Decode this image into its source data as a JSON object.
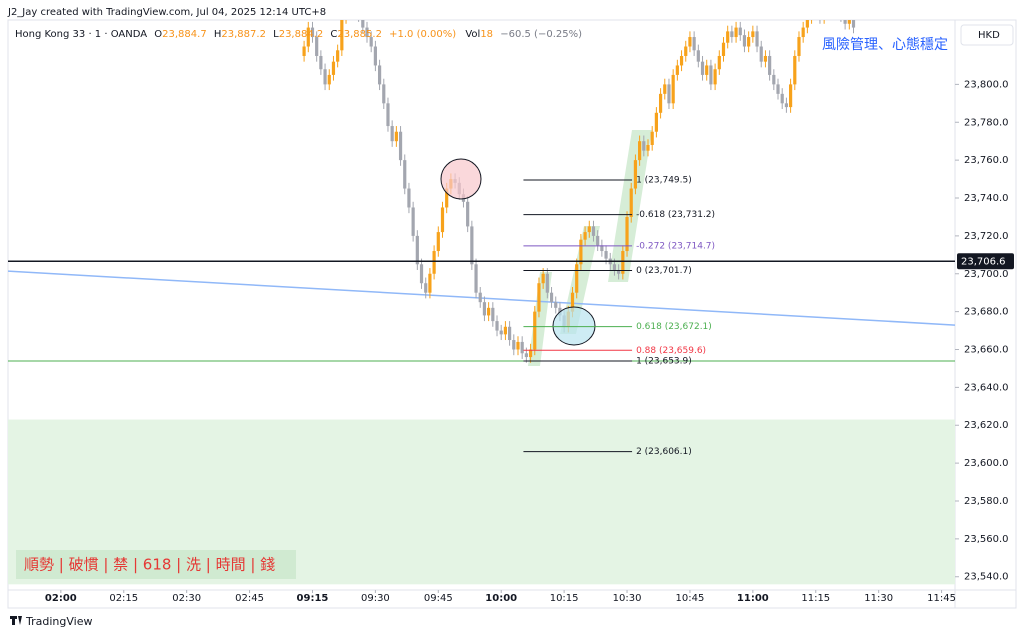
{
  "header": {
    "credit": "J2_Jay created with TradingView.com, Jul 04, 2025 12:14 UTC+8",
    "symbol": "Hong Kong 33 · 1 · OANDA",
    "ohlc": [
      {
        "label": "O",
        "value": "23,884.7"
      },
      {
        "label": "H",
        "value": "23,887.2"
      },
      {
        "label": "L",
        "value": "23,884.2"
      },
      {
        "label": "C",
        "value": "23,885.2"
      }
    ],
    "change": "+1.0 (0.00%)",
    "vol_label": "Vol",
    "vol": "18",
    "vol_change": "−60.5 (−0.25%)"
  },
  "currency": "HKD",
  "footer": "TradingView",
  "annotation": "風險管理、心態穩定",
  "note_box": "順勢 | 破慣 | 禁 | 618 | 洗 | 時間 | 錢",
  "chart_data": {
    "type": "candlestick",
    "up_color": "#f7a21b",
    "down_color": "#a3a6af",
    "grid": false,
    "xlim": [
      -12.6,
      213.2
    ],
    "ylim": [
      23533,
      23834
    ],
    "xticks": [
      {
        "value": 0,
        "label": "02:00",
        "bold": true
      },
      {
        "value": 15,
        "label": "02:15"
      },
      {
        "value": 30,
        "label": "02:30"
      },
      {
        "value": 45,
        "label": "02:45"
      },
      {
        "value": 60,
        "label": "09:15",
        "bold": true
      },
      {
        "value": 75,
        "label": "09:30"
      },
      {
        "value": 90,
        "label": "09:45"
      },
      {
        "value": 105,
        "label": "10:00",
        "bold": true
      },
      {
        "value": 120,
        "label": "10:15"
      },
      {
        "value": 135,
        "label": "10:30"
      },
      {
        "value": 150,
        "label": "10:45"
      },
      {
        "value": 165,
        "label": "11:00",
        "bold": true
      },
      {
        "value": 180,
        "label": "11:15"
      },
      {
        "value": 195,
        "label": "11:30"
      },
      {
        "value": 210,
        "label": "11:45"
      }
    ],
    "yticks": [
      {
        "value": 23540,
        "label": "23,540.0"
      },
      {
        "value": 23560,
        "label": "23,560.0"
      },
      {
        "value": 23580,
        "label": "23,580.0"
      },
      {
        "value": 23600,
        "label": "23,600.0"
      },
      {
        "value": 23620,
        "label": "23,620.0"
      },
      {
        "value": 23640,
        "label": "23,640.0"
      },
      {
        "value": 23660,
        "label": "23,660.0"
      },
      {
        "value": 23680,
        "label": "23,680.0"
      },
      {
        "value": 23700,
        "label": "23,700.0"
      },
      {
        "value": 23720,
        "label": "23,720.0"
      },
      {
        "value": 23740,
        "label": "23,740.0"
      },
      {
        "value": 23760,
        "label": "23,760.0"
      },
      {
        "value": 23780,
        "label": "23,780.0"
      },
      {
        "value": 23800,
        "label": "23,800.0"
      }
    ],
    "x": [
      58,
      59,
      60,
      61,
      62,
      63,
      64,
      65,
      66,
      67,
      68,
      69,
      70,
      71,
      72,
      73,
      74,
      75,
      76,
      77,
      78,
      79,
      80,
      81,
      82,
      83,
      84,
      85,
      86,
      87,
      88,
      89,
      90,
      91,
      92,
      93,
      94,
      95,
      96,
      97,
      98,
      99,
      100,
      101,
      102,
      103,
      104,
      105,
      106,
      107,
      108,
      109,
      110,
      111,
      112,
      113,
      114,
      115,
      116,
      117,
      118,
      119,
      120,
      121,
      122,
      123,
      124,
      125,
      126,
      127,
      128,
      129,
      130,
      131,
      132,
      133,
      134,
      135,
      136,
      137,
      138,
      139,
      140,
      141,
      142,
      143,
      144,
      145,
      146,
      147,
      148,
      149,
      150,
      151,
      152,
      153,
      154,
      155,
      156,
      157,
      158,
      159,
      160,
      161,
      162,
      163,
      164,
      165,
      166,
      167,
      168,
      169,
      170,
      171,
      172,
      173,
      174,
      175,
      176,
      177,
      178,
      179,
      180,
      181,
      182,
      183,
      184,
      185,
      186,
      187,
      188,
      189
    ],
    "open": [
      23815,
      23820,
      23830,
      23825,
      23815,
      23808,
      23800,
      23805,
      23812,
      23818,
      23835,
      23840,
      23838,
      23842,
      23836,
      23830,
      23825,
      23820,
      23810,
      23800,
      23790,
      23778,
      23770,
      23775,
      23760,
      23745,
      23735,
      23720,
      23705,
      23695,
      23690,
      23700,
      23712,
      23722,
      23735,
      23745,
      23750,
      23748,
      23742,
      23738,
      23725,
      23705,
      23690,
      23685,
      23678,
      23682,
      23675,
      23670,
      23668,
      23672,
      23665,
      23660,
      23664,
      23658,
      23656,
      23660,
      23680,
      23695,
      23700,
      23690,
      23685,
      23682,
      23678,
      23672,
      23680,
      23690,
      23705,
      23718,
      23722,
      23725,
      23720,
      23715,
      23712,
      23708,
      23705,
      23702,
      23700,
      23712,
      23730,
      23745,
      23760,
      23770,
      23765,
      23768,
      23775,
      23785,
      23795,
      23800,
      23790,
      23805,
      23810,
      23815,
      23820,
      23825,
      23818,
      23812,
      23805,
      23810,
      23800,
      23808,
      23815,
      23822,
      23828,
      23825,
      23830,
      23826,
      23820,
      23825,
      23828,
      23820,
      23812,
      23815,
      23805,
      23800,
      23795,
      23790,
      23788,
      23800,
      23815,
      23825,
      23830,
      23835,
      23838,
      23840,
      23835,
      23842,
      23838,
      23845,
      23840,
      23836,
      23832,
      23835
    ],
    "high": [
      23823,
      23833,
      23833,
      23828,
      23818,
      23811,
      23808,
      23815,
      23821,
      23838,
      23843,
      23843,
      23845,
      23845,
      23839,
      23833,
      23828,
      23823,
      23813,
      23803,
      23793,
      23781,
      23778,
      23778,
      23763,
      23748,
      23738,
      23723,
      23708,
      23698,
      23703,
      23715,
      23725,
      23738,
      23748,
      23753,
      23753,
      23751,
      23745,
      23741,
      23728,
      23708,
      23693,
      23688,
      23685,
      23685,
      23678,
      23673,
      23675,
      23675,
      23668,
      23667,
      23667,
      23661,
      23663,
      23683,
      23698,
      23703,
      23703,
      23693,
      23688,
      23685,
      23681,
      23683,
      23693,
      23708,
      23721,
      23725,
      23728,
      23728,
      23723,
      23718,
      23715,
      23711,
      23708,
      23705,
      23715,
      23733,
      23748,
      23763,
      23773,
      23773,
      23771,
      23778,
      23788,
      23798,
      23803,
      23803,
      23808,
      23813,
      23818,
      23823,
      23828,
      23828,
      23821,
      23815,
      23813,
      23813,
      23811,
      23818,
      23825,
      23831,
      23831,
      23833,
      23833,
      23829,
      23828,
      23831,
      23831,
      23823,
      23818,
      23818,
      23808,
      23803,
      23798,
      23793,
      23803,
      23818,
      23828,
      23833,
      23838,
      23841,
      23843,
      23843,
      23845,
      23845,
      23848,
      23848,
      23843,
      23839,
      23838,
      23838
    ],
    "low": [
      23812,
      23817,
      23822,
      23812,
      23805,
      23797,
      23797,
      23802,
      23809,
      23815,
      23832,
      23835,
      23835,
      23833,
      23827,
      23822,
      23817,
      23807,
      23797,
      23787,
      23775,
      23767,
      23767,
      23757,
      23742,
      23732,
      23717,
      23702,
      23692,
      23687,
      23687,
      23697,
      23709,
      23719,
      23732,
      23742,
      23745,
      23739,
      23735,
      23722,
      23702,
      23687,
      23682,
      23675,
      23675,
      23672,
      23667,
      23665,
      23665,
      23662,
      23657,
      23657,
      23655,
      23653,
      23653,
      23657,
      23677,
      23692,
      23687,
      23682,
      23679,
      23675,
      23669,
      23669,
      23677,
      23687,
      23702,
      23715,
      23719,
      23717,
      23712,
      23709,
      23705,
      23702,
      23699,
      23697,
      23697,
      23709,
      23727,
      23742,
      23757,
      23762,
      23762,
      23765,
      23772,
      23782,
      23792,
      23787,
      23787,
      23802,
      23807,
      23812,
      23817,
      23815,
      23809,
      23802,
      23802,
      23797,
      23797,
      23805,
      23812,
      23819,
      23822,
      23822,
      23823,
      23817,
      23817,
      23822,
      23817,
      23809,
      23809,
      23802,
      23797,
      23792,
      23787,
      23785,
      23785,
      23797,
      23812,
      23822,
      23827,
      23832,
      23835,
      23832,
      23832,
      23835,
      23835,
      23837,
      23833,
      23829,
      23829,
      23827
    ],
    "close": [
      23820,
      23830,
      23825,
      23815,
      23808,
      23800,
      23805,
      23812,
      23818,
      23835,
      23840,
      23838,
      23842,
      23836,
      23830,
      23825,
      23820,
      23810,
      23800,
      23790,
      23778,
      23770,
      23775,
      23760,
      23745,
      23735,
      23720,
      23705,
      23695,
      23690,
      23700,
      23712,
      23722,
      23735,
      23745,
      23750,
      23748,
      23742,
      23738,
      23725,
      23705,
      23690,
      23685,
      23678,
      23682,
      23675,
      23670,
      23668,
      23672,
      23665,
      23660,
      23664,
      23658,
      23656,
      23660,
      23680,
      23695,
      23700,
      23690,
      23685,
      23682,
      23678,
      23672,
      23680,
      23690,
      23705,
      23718,
      23722,
      23725,
      23720,
      23715,
      23712,
      23708,
      23705,
      23702,
      23700,
      23712,
      23730,
      23745,
      23760,
      23770,
      23765,
      23768,
      23775,
      23785,
      23795,
      23800,
      23790,
      23805,
      23810,
      23815,
      23820,
      23825,
      23818,
      23812,
      23805,
      23810,
      23800,
      23808,
      23815,
      23822,
      23828,
      23825,
      23830,
      23826,
      23820,
      23825,
      23828,
      23820,
      23812,
      23815,
      23805,
      23800,
      23795,
      23790,
      23788,
      23800,
      23815,
      23825,
      23830,
      23835,
      23838,
      23840,
      23835,
      23842,
      23838,
      23845,
      23840,
      23836,
      23832,
      23835,
      23830
    ],
    "price_line": {
      "value": 23706.6,
      "label": "23,706.6"
    },
    "support_line": {
      "value": 23653.9,
      "color": "#4caf50"
    },
    "zone": {
      "values": [
        23623,
        23536
      ],
      "color": "#e4f4e4"
    },
    "trendline": {
      "x": [
        -12.6,
        213.2
      ],
      "values": [
        23701.4,
        23672.9
      ],
      "color": "#90b8f8"
    },
    "fib": {
      "x": [
        110.3,
        136.2
      ],
      "levels": [
        {
          "label": "1 (23,749.5)",
          "value": 23749.5,
          "color": "#131722"
        },
        {
          "label": "-0.618 (23,731.2)",
          "value": 23731.2,
          "color": "#131722"
        },
        {
          "label": "-0.272 (23,714.7)",
          "value": 23714.7,
          "color": "#7e57c2"
        },
        {
          "label": "0 (23,701.7)",
          "value": 23701.7,
          "color": "#131722"
        },
        {
          "label": "0.618 (23,672.1)",
          "value": 23672.1,
          "color": "#4caf50"
        },
        {
          "label": "0.88 (23,659.6)",
          "value": 23659.6,
          "color": "#f23645"
        },
        {
          "label": "1 (23,653.9)",
          "value": 23653.9,
          "color": "#131722"
        },
        {
          "label": "2 (23,606.1)",
          "value": 23606.1,
          "color": "#131722"
        }
      ]
    }
  }
}
